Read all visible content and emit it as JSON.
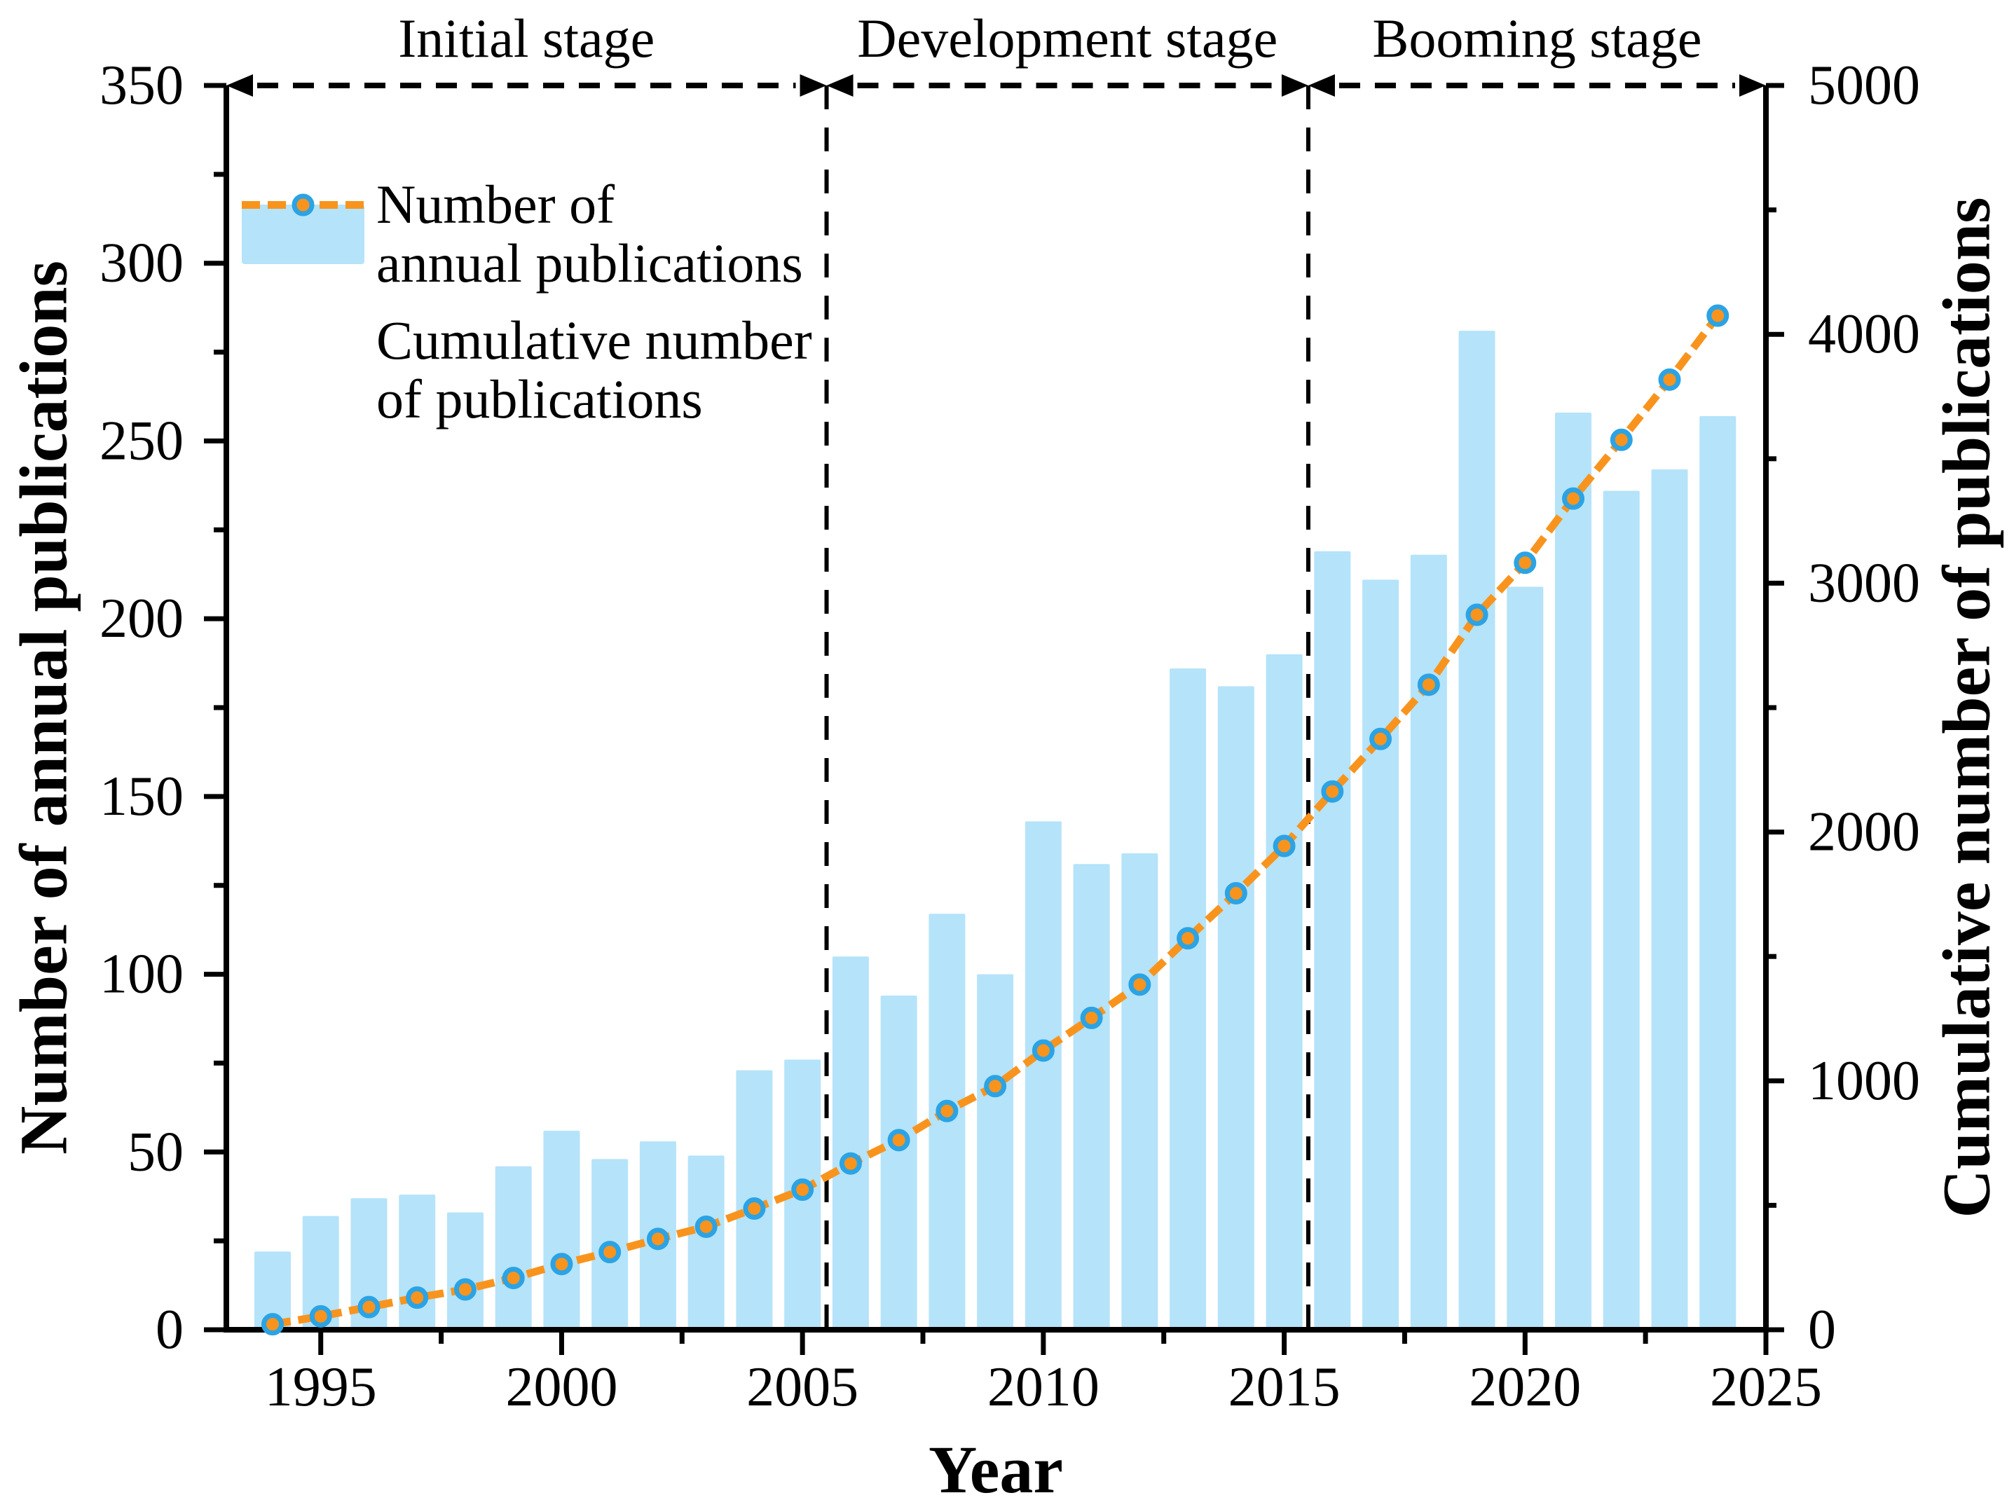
{
  "titles": {
    "x_axis": "Year",
    "y_left": "Number of annual publications",
    "y_right": "Cumulative number of publications"
  },
  "legend": {
    "annual_line1": "Number of",
    "annual_line2": "annual publications",
    "cumulative_line1": "Cumulative number",
    "cumulative_line2": "of publications"
  },
  "stages": [
    {
      "label": "Initial stage",
      "from_year": 1993.04,
      "to_year": 2005.5
    },
    {
      "label": "Development stage",
      "from_year": 2005.5,
      "to_year": 2015.5
    },
    {
      "label": "Booming stage",
      "from_year": 2015.5,
      "to_year": 2025
    }
  ],
  "colors": {
    "bar": "#B5E3F9",
    "line": "#F8941D",
    "marker_fill": "#F8941D",
    "marker_edge": "#2BA3E4",
    "axis": "#000000",
    "background": "#FFFFFF"
  },
  "axes": {
    "x": {
      "min": 1993.04,
      "max": 2025,
      "major_ticks": [
        1995,
        2000,
        2005,
        2010,
        2015,
        2020,
        2025
      ],
      "major_tick_labels": [
        "1995",
        "2000",
        "2005",
        "2010",
        "2015",
        "2020",
        "2025"
      ],
      "minor_ticks": [
        1997.5,
        2002.5,
        2007.5,
        2012.5,
        2017.5,
        2022.5
      ]
    },
    "y_left": {
      "min": 0,
      "max": 350,
      "major_ticks": [
        0,
        50,
        100,
        150,
        200,
        250,
        300,
        350
      ],
      "major_tick_labels": [
        "0",
        "50",
        "100",
        "150",
        "200",
        "250",
        "300",
        "350"
      ],
      "minor_ticks": [
        25,
        75,
        125,
        175,
        225,
        275,
        325
      ]
    },
    "y_right": {
      "min": 0,
      "max": 5000,
      "major_ticks": [
        0,
        1000,
        2000,
        3000,
        4000,
        5000
      ],
      "major_tick_labels": [
        "0",
        "1000",
        "2000",
        "3000",
        "4000",
        "5000"
      ],
      "minor_ticks": [
        500,
        1500,
        2500,
        3500,
        4500
      ]
    }
  },
  "chart_data": {
    "type": "bar+line",
    "x": [
      1994,
      1995,
      1996,
      1997,
      1998,
      1999,
      2000,
      2001,
      2002,
      2003,
      2004,
      2005,
      2006,
      2007,
      2008,
      2009,
      2010,
      2011,
      2012,
      2013,
      2014,
      2015,
      2016,
      2017,
      2018,
      2019,
      2020,
      2021,
      2022,
      2023,
      2024
    ],
    "series": [
      {
        "name": "Number of annual publications",
        "type": "bar",
        "axis": "left",
        "values": [
          22,
          32,
          37,
          38,
          33,
          46,
          56,
          48,
          53,
          49,
          73,
          76,
          105,
          94,
          117,
          100,
          143,
          131,
          134,
          186,
          181,
          190,
          219,
          211,
          218,
          281,
          209,
          258,
          236,
          242,
          257
        ]
      },
      {
        "name": "Cumulative number of publications",
        "type": "line",
        "axis": "right",
        "values": [
          22,
          54,
          91,
          129,
          162,
          208,
          264,
          312,
          365,
          414,
          487,
          563,
          668,
          762,
          879,
          979,
          1122,
          1253,
          1387,
          1573,
          1754,
          1944,
          2163,
          2374,
          2592,
          2873,
          3082,
          3340,
          3576,
          3818,
          4075
        ]
      }
    ],
    "xlabel": "Year",
    "ylabel_left": "Number of annual publications",
    "ylabel_right": "Cumulative number of publications",
    "ylim_left": [
      0,
      350
    ],
    "ylim_right": [
      0,
      5000
    ],
    "grid": false,
    "legend_position": "upper-left"
  }
}
